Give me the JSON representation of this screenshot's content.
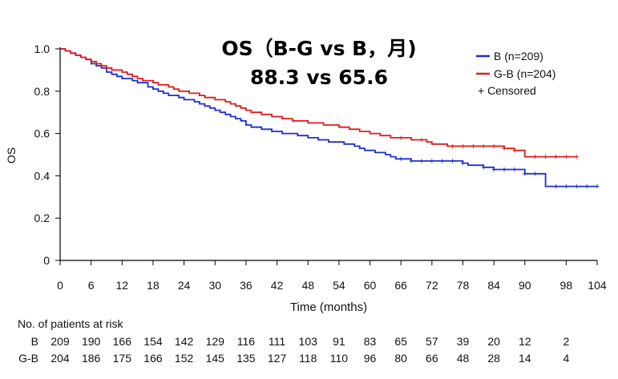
{
  "chart_data": {
    "type": "line",
    "subtype": "kaplan-meier",
    "title_line1": "OS（B-G vs B，月)",
    "title_line2": "88.3 vs 65.6",
    "xlabel": "Time (months)",
    "ylabel": "OS",
    "xlim": [
      0,
      104
    ],
    "ylim": [
      0,
      1.0
    ],
    "x_ticks": [
      "0",
      "6",
      "12",
      "18",
      "24",
      "30",
      "36",
      "42",
      "48",
      "54",
      "60",
      "66",
      "72",
      "78",
      "84",
      "90",
      "98",
      "104"
    ],
    "y_ticks": [
      "0",
      "0.2",
      "0.4",
      "0.6",
      "0.8",
      "1.0"
    ],
    "legend": {
      "position": "top-right",
      "censored_label": "+ Censored"
    },
    "series": [
      {
        "name": "B",
        "legend_label": "B (n=209)",
        "color": "#1f2ed1",
        "points": [
          [
            0,
            1.0
          ],
          [
            1,
            0.99
          ],
          [
            2,
            0.98
          ],
          [
            3,
            0.97
          ],
          [
            4,
            0.96
          ],
          [
            5,
            0.95
          ],
          [
            6,
            0.93
          ],
          [
            7,
            0.92
          ],
          [
            8,
            0.91
          ],
          [
            9,
            0.89
          ],
          [
            10,
            0.88
          ],
          [
            11,
            0.87
          ],
          [
            12,
            0.86
          ],
          [
            13,
            0.86
          ],
          [
            14,
            0.85
          ],
          [
            15,
            0.84
          ],
          [
            16,
            0.84
          ],
          [
            17,
            0.82
          ],
          [
            18,
            0.81
          ],
          [
            19,
            0.8
          ],
          [
            20,
            0.79
          ],
          [
            21,
            0.78
          ],
          [
            22,
            0.78
          ],
          [
            23,
            0.77
          ],
          [
            24,
            0.76
          ],
          [
            25,
            0.76
          ],
          [
            26,
            0.75
          ],
          [
            27,
            0.74
          ],
          [
            28,
            0.73
          ],
          [
            29,
            0.72
          ],
          [
            30,
            0.71
          ],
          [
            31,
            0.7
          ],
          [
            32,
            0.69
          ],
          [
            33,
            0.68
          ],
          [
            34,
            0.67
          ],
          [
            35,
            0.66
          ],
          [
            36,
            0.64
          ],
          [
            37,
            0.63
          ],
          [
            38,
            0.63
          ],
          [
            39,
            0.62
          ],
          [
            40,
            0.62
          ],
          [
            41,
            0.61
          ],
          [
            42,
            0.61
          ],
          [
            43,
            0.6
          ],
          [
            44,
            0.6
          ],
          [
            45,
            0.6
          ],
          [
            46,
            0.59
          ],
          [
            47,
            0.59
          ],
          [
            48,
            0.58
          ],
          [
            49,
            0.58
          ],
          [
            50,
            0.57
          ],
          [
            51,
            0.57
          ],
          [
            52,
            0.56
          ],
          [
            53,
            0.56
          ],
          [
            54,
            0.56
          ],
          [
            55,
            0.55
          ],
          [
            56,
            0.55
          ],
          [
            57,
            0.54
          ],
          [
            58,
            0.53
          ],
          [
            59,
            0.52
          ],
          [
            60,
            0.52
          ],
          [
            61,
            0.51
          ],
          [
            62,
            0.51
          ],
          [
            63,
            0.5
          ],
          [
            64,
            0.49
          ],
          [
            65,
            0.48
          ],
          [
            66,
            0.48
          ],
          [
            67,
            0.48
          ],
          [
            68,
            0.47
          ],
          [
            69,
            0.47
          ],
          [
            70,
            0.47
          ],
          [
            72,
            0.47
          ],
          [
            74,
            0.47
          ],
          [
            76,
            0.47
          ],
          [
            78,
            0.46
          ],
          [
            79,
            0.45
          ],
          [
            80,
            0.45
          ],
          [
            82,
            0.44
          ],
          [
            84,
            0.43
          ],
          [
            86,
            0.43
          ],
          [
            88,
            0.43
          ],
          [
            90,
            0.41
          ],
          [
            92,
            0.41
          ],
          [
            94,
            0.35
          ],
          [
            96,
            0.35
          ],
          [
            98,
            0.35
          ],
          [
            100,
            0.35
          ],
          [
            102,
            0.35
          ],
          [
            104,
            0.35
          ]
        ],
        "censor_x": [
          66,
          68,
          70,
          72,
          74,
          76,
          78,
          82,
          84,
          86,
          88,
          90,
          92,
          96,
          98,
          100,
          102,
          104
        ]
      },
      {
        "name": "G-B",
        "legend_label": "G-B (n=204)",
        "color": "#e01b1b",
        "points": [
          [
            0,
            1.0
          ],
          [
            1,
            0.99
          ],
          [
            2,
            0.98
          ],
          [
            3,
            0.97
          ],
          [
            4,
            0.96
          ],
          [
            5,
            0.95
          ],
          [
            6,
            0.94
          ],
          [
            7,
            0.93
          ],
          [
            8,
            0.92
          ],
          [
            9,
            0.91
          ],
          [
            10,
            0.9
          ],
          [
            11,
            0.9
          ],
          [
            12,
            0.89
          ],
          [
            13,
            0.88
          ],
          [
            14,
            0.87
          ],
          [
            15,
            0.86
          ],
          [
            16,
            0.85
          ],
          [
            17,
            0.85
          ],
          [
            18,
            0.84
          ],
          [
            19,
            0.83
          ],
          [
            20,
            0.83
          ],
          [
            21,
            0.82
          ],
          [
            22,
            0.81
          ],
          [
            23,
            0.8
          ],
          [
            24,
            0.8
          ],
          [
            25,
            0.79
          ],
          [
            26,
            0.79
          ],
          [
            27,
            0.78
          ],
          [
            28,
            0.77
          ],
          [
            29,
            0.77
          ],
          [
            30,
            0.76
          ],
          [
            31,
            0.76
          ],
          [
            32,
            0.75
          ],
          [
            33,
            0.74
          ],
          [
            34,
            0.73
          ],
          [
            35,
            0.72
          ],
          [
            36,
            0.71
          ],
          [
            37,
            0.7
          ],
          [
            38,
            0.7
          ],
          [
            39,
            0.69
          ],
          [
            40,
            0.69
          ],
          [
            41,
            0.68
          ],
          [
            42,
            0.68
          ],
          [
            43,
            0.67
          ],
          [
            44,
            0.67
          ],
          [
            45,
            0.66
          ],
          [
            46,
            0.66
          ],
          [
            47,
            0.66
          ],
          [
            48,
            0.65
          ],
          [
            49,
            0.65
          ],
          [
            50,
            0.65
          ],
          [
            51,
            0.64
          ],
          [
            52,
            0.64
          ],
          [
            53,
            0.64
          ],
          [
            54,
            0.63
          ],
          [
            55,
            0.63
          ],
          [
            56,
            0.62
          ],
          [
            57,
            0.62
          ],
          [
            58,
            0.61
          ],
          [
            59,
            0.61
          ],
          [
            60,
            0.6
          ],
          [
            61,
            0.6
          ],
          [
            62,
            0.59
          ],
          [
            63,
            0.59
          ],
          [
            64,
            0.58
          ],
          [
            66,
            0.58
          ],
          [
            68,
            0.57
          ],
          [
            70,
            0.57
          ],
          [
            71,
            0.56
          ],
          [
            72,
            0.55
          ],
          [
            74,
            0.55
          ],
          [
            75,
            0.54
          ],
          [
            76,
            0.54
          ],
          [
            78,
            0.54
          ],
          [
            80,
            0.54
          ],
          [
            82,
            0.54
          ],
          [
            84,
            0.54
          ],
          [
            86,
            0.53
          ],
          [
            88,
            0.52
          ],
          [
            90,
            0.49
          ],
          [
            92,
            0.49
          ],
          [
            94,
            0.49
          ],
          [
            96,
            0.49
          ],
          [
            98,
            0.49
          ],
          [
            100,
            0.49
          ]
        ],
        "censor_x": [
          66,
          70,
          76,
          78,
          80,
          82,
          84,
          86,
          88,
          92,
          94,
          96,
          98,
          100
        ]
      }
    ],
    "at_risk": {
      "header": "No. of patients at risk",
      "times": [
        0,
        6,
        12,
        18,
        24,
        30,
        36,
        42,
        48,
        54,
        60,
        66,
        72,
        78,
        84,
        90,
        98
      ],
      "rows": [
        {
          "label": "B",
          "values": [
            "209",
            "190",
            "166",
            "154",
            "142",
            "129",
            "116",
            "111",
            "103",
            "91",
            "83",
            "65",
            "57",
            "39",
            "20",
            "12",
            "2"
          ]
        },
        {
          "label": "G-B",
          "values": [
            "204",
            "186",
            "175",
            "166",
            "152",
            "145",
            "135",
            "127",
            "118",
            "110",
            "96",
            "80",
            "66",
            "48",
            "28",
            "14",
            "4"
          ]
        }
      ]
    }
  }
}
